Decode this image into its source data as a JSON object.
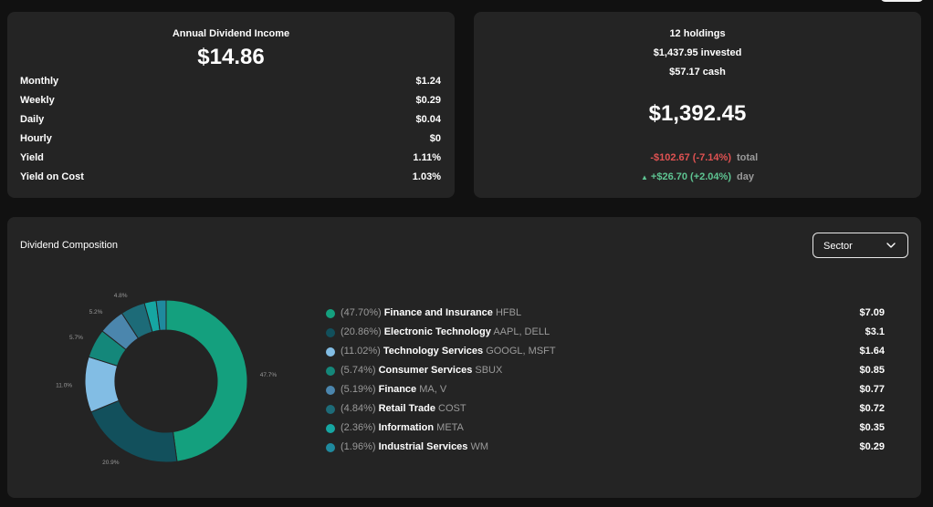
{
  "income": {
    "title": "Annual Dividend Income",
    "value": "$14.86",
    "rows": [
      {
        "label": "Monthly",
        "value": "$1.24"
      },
      {
        "label": "Weekly",
        "value": "$0.29"
      },
      {
        "label": "Daily",
        "value": "$0.04"
      },
      {
        "label": "Hourly",
        "value": "$0"
      },
      {
        "label": "Yield",
        "value": "1.11%"
      },
      {
        "label": "Yield on Cost",
        "value": "1.03%"
      }
    ]
  },
  "holdings": {
    "count": "12 holdings",
    "invested": "$1,437.95 invested",
    "cash": "$57.17 cash",
    "value": "$1,392.45",
    "total_change": "-$102.67 (-7.14%)",
    "total_label": "total",
    "day_change": "+$26.70 (+2.04%)",
    "day_label": "day",
    "colors": {
      "negative": "#e05252",
      "positive": "#5ec492"
    }
  },
  "composition": {
    "title": "Dividend Composition",
    "group_by": "Sector",
    "items": [
      {
        "pct": "(47.70%)",
        "sector": "Finance and Insurance",
        "tickers": "HFBL",
        "amount": "$7.09",
        "color": "#14a07e"
      },
      {
        "pct": "(20.86%)",
        "sector": "Electronic Technology",
        "tickers": "AAPL, DELL",
        "amount": "$3.1",
        "color": "#12505c"
      },
      {
        "pct": "(11.02%)",
        "sector": "Technology Services",
        "tickers": "GOOGL, MSFT",
        "amount": "$1.64",
        "color": "#82bde4"
      },
      {
        "pct": "(5.74%)",
        "sector": "Consumer Services",
        "tickers": "SBUX",
        "amount": "$0.85",
        "color": "#14877a"
      },
      {
        "pct": "(5.19%)",
        "sector": "Finance",
        "tickers": "MA, V",
        "amount": "$0.77",
        "color": "#4b86ad"
      },
      {
        "pct": "(4.84%)",
        "sector": "Retail Trade",
        "tickers": "COST",
        "amount": "$0.72",
        "color": "#1d6b78"
      },
      {
        "pct": "(2.36%)",
        "sector": "Information",
        "tickers": "META",
        "amount": "$0.35",
        "color": "#16a6a2"
      },
      {
        "pct": "(1.96%)",
        "sector": "Industrial Services",
        "tickers": "WM",
        "amount": "$0.29",
        "color": "#1f8a9e"
      }
    ]
  },
  "chart_data": {
    "type": "pie",
    "categories": [
      "Finance and Insurance",
      "Electronic Technology",
      "Technology Services",
      "Consumer Services",
      "Finance",
      "Retail Trade",
      "Information",
      "Industrial Services"
    ],
    "values": [
      47.7,
      20.86,
      11.02,
      5.74,
      5.19,
      4.84,
      2.36,
      1.96
    ],
    "data_labels": [
      "47.7%",
      "20.9%",
      "11.0%",
      "5.7%",
      "5.2%",
      "4.8%",
      "",
      ""
    ],
    "colors": [
      "#14a07e",
      "#12505c",
      "#82bde4",
      "#14877a",
      "#4b86ad",
      "#1d6b78",
      "#16a6a2",
      "#1f8a9e"
    ]
  }
}
